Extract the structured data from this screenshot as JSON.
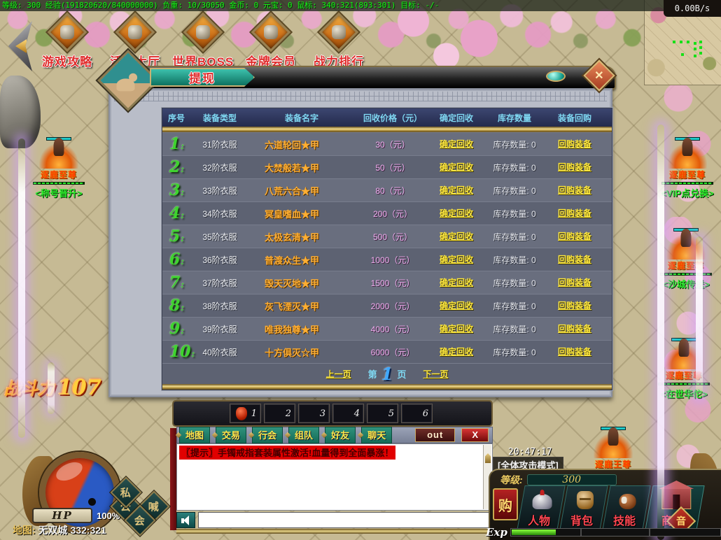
{
  "status_bar": {
    "text": "等级: 300 经验(191820620/840000000) 负重: 10/30050 金币: 0 元宝: 0 鼠标: 340:321(893:301) 目标: -/-"
  },
  "minimap": {
    "net_speed": "0.00B/s"
  },
  "top_menu": [
    "游戏攻略",
    "活动大厅",
    "世界BOSS",
    "金牌会员",
    "战力排行"
  ],
  "dialog": {
    "title": "提现",
    "close_glyph": "✕",
    "table": {
      "headers": [
        "序号",
        "装备类型",
        "装备名字",
        "回收价格（元）",
        "确定回收",
        "库存数量",
        "装备回购"
      ],
      "no_suffix": ":",
      "confirm_label": "确定回收",
      "stock_label": "库存数量: 0",
      "buyback_label": "回购装备",
      "rows": [
        {
          "no": "1",
          "type": "31阶衣服",
          "name": "六道轮回★甲",
          "price": "30（元）"
        },
        {
          "no": "2",
          "type": "32阶衣服",
          "name": "大焚般若★甲",
          "price": "50（元）"
        },
        {
          "no": "3",
          "type": "33阶衣服",
          "name": "八荒六合★甲",
          "price": "80（元）"
        },
        {
          "no": "4",
          "type": "34阶衣服",
          "name": "冥皇嗜血★甲",
          "price": "200（元）"
        },
        {
          "no": "5",
          "type": "35阶衣服",
          "name": "太极玄清★甲",
          "price": "500（元）"
        },
        {
          "no": "6",
          "type": "36阶衣服",
          "name": "普渡众生★甲",
          "price": "1000（元）"
        },
        {
          "no": "7",
          "type": "37阶衣服",
          "name": "毁天灭地★甲",
          "price": "1500（元）"
        },
        {
          "no": "8",
          "type": "38阶衣服",
          "name": "灰飞湮灭★甲",
          "price": "2000（元）"
        },
        {
          "no": "9",
          "type": "39阶衣服",
          "name": "唯我独尊★甲",
          "price": "4000（元）"
        },
        {
          "no": "10",
          "type": "40阶衣服",
          "name": "十方俱灭☆甲",
          "price": "6000（元）"
        }
      ]
    },
    "pagination": {
      "prev": "上一页",
      "page_prefix": "第",
      "page": "1",
      "page_suffix": "页",
      "next": "下一页"
    }
  },
  "hotbar": {
    "slots": [
      "1",
      "2",
      "3",
      "4",
      "5",
      "6"
    ]
  },
  "chat": {
    "tabs": [
      "地图",
      "交易",
      "行会",
      "组队",
      "好友",
      "聊天"
    ],
    "out_label": "out",
    "close_label": "X",
    "message": "〖提示〗手镯戒指套装属性激活!血量得到全面暴涨！"
  },
  "player": {
    "hp_label": "HP",
    "hp_percent": "100%",
    "map_label": "地图:",
    "map_value": "无双城 332:321",
    "power_label": "战斗力",
    "power_value": "107"
  },
  "quick_buttons": [
    "公",
    "喊",
    "会",
    "私"
  ],
  "bottom_right": {
    "time": "20:47:17",
    "attack_mode": "[全体攻击模式]",
    "level_label": "等级:",
    "level_value": "300",
    "buy_label": "购",
    "buttons": [
      "人物",
      "背包",
      "技能",
      "商城"
    ],
    "sound_label": "音",
    "exp_label": "Exp"
  },
  "npcs": [
    {
      "title": "逐鹿至尊",
      "name": "<称号晋升>"
    },
    {
      "title": "逐鹿至尊",
      "name": "<VIP点兑换>"
    },
    {
      "title": "逐鹿至尊",
      "name": "<沙城传送>"
    },
    {
      "title": "逐鹿至尊",
      "name": "<在世华佗>"
    },
    {
      "title": "逐鹿王尊",
      "name": ""
    }
  ]
}
